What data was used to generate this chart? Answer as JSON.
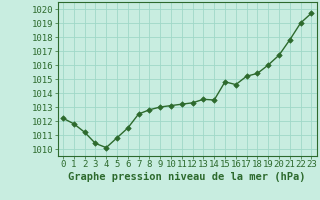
{
  "x": [
    0,
    1,
    2,
    3,
    4,
    5,
    6,
    7,
    8,
    9,
    10,
    11,
    12,
    13,
    14,
    15,
    16,
    17,
    18,
    19,
    20,
    21,
    22,
    23
  ],
  "y": [
    1012.2,
    1011.8,
    1011.2,
    1010.4,
    1010.1,
    1010.8,
    1011.5,
    1012.5,
    1012.8,
    1013.0,
    1013.1,
    1013.2,
    1013.3,
    1013.55,
    1013.5,
    1014.8,
    1014.6,
    1015.2,
    1015.4,
    1016.0,
    1016.7,
    1017.8,
    1019.0,
    1019.7
  ],
  "line_color": "#2d6a2d",
  "marker": "D",
  "markersize": 2.8,
  "linewidth": 1.0,
  "background_color": "#c8ede0",
  "plot_bg_color": "#c8ede0",
  "grid_color": "#a0d8c8",
  "border_color": "#2d6a2d",
  "xlabel": "Graphe pression niveau de la mer (hPa)",
  "xlabel_color": "#2d6a2d",
  "xlabel_fontsize": 7.5,
  "tick_color": "#2d6a2d",
  "tick_fontsize": 6.5,
  "ylim": [
    1009.5,
    1020.5
  ],
  "yticks": [
    1010,
    1011,
    1012,
    1013,
    1014,
    1015,
    1016,
    1017,
    1018,
    1019,
    1020
  ],
  "xlim": [
    -0.5,
    23.5
  ],
  "xticks": [
    0,
    1,
    2,
    3,
    4,
    5,
    6,
    7,
    8,
    9,
    10,
    11,
    12,
    13,
    14,
    15,
    16,
    17,
    18,
    19,
    20,
    21,
    22,
    23
  ]
}
